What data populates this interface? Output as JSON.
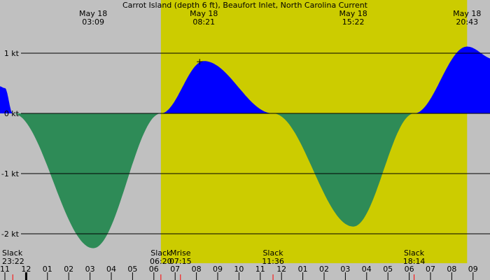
{
  "chart_data": {
    "type": "area",
    "title": "Carrot Island (depth 6 ft), Beaufort Inlet, North Carolina Current",
    "unit": "kt",
    "x_start_hour": 23.0,
    "x_end_hour": 33.3,
    "ylim": [
      -2.35,
      1.65
    ],
    "y_ticks": [
      {
        "value": 1,
        "label": "1 kt"
      },
      {
        "value": 0,
        "label": "0 kt"
      },
      {
        "value": -1,
        "label": "-1 kt"
      },
      {
        "value": -2,
        "label": "-2 kt"
      }
    ],
    "daylight": {
      "start_hour": 30.33,
      "end_hour": 44.72
    },
    "hour_ticks": [
      {
        "hour": 23,
        "label": "11"
      },
      {
        "hour": 24,
        "label": "12"
      },
      {
        "hour": 25,
        "label": "01"
      },
      {
        "hour": 26,
        "label": "02"
      },
      {
        "hour": 27,
        "label": "03"
      },
      {
        "hour": 28,
        "label": "04"
      },
      {
        "hour": 29,
        "label": "05"
      },
      {
        "hour": 30,
        "label": "06"
      },
      {
        "hour": 31,
        "label": "07"
      },
      {
        "hour": 32,
        "label": "08"
      },
      {
        "hour": 33,
        "label": "09"
      },
      {
        "hour": 34,
        "label": "10"
      },
      {
        "hour": 35,
        "label": "11"
      },
      {
        "hour": 36,
        "label": "12"
      },
      {
        "hour": 37,
        "label": "01"
      },
      {
        "hour": 38,
        "label": "02"
      },
      {
        "hour": 39,
        "label": "03"
      },
      {
        "hour": 40,
        "label": "04"
      },
      {
        "hour": 41,
        "label": "05"
      },
      {
        "hour": 42,
        "label": "06"
      },
      {
        "hour": 43,
        "label": "07"
      },
      {
        "hour": 44,
        "label": "08"
      },
      {
        "hour": 45,
        "label": "09"
      }
    ],
    "extremes": [
      {
        "date": "May 18",
        "time": "03:09",
        "hour": 27.15,
        "value": -2.24
      },
      {
        "date": "May 18",
        "time": "08:21",
        "hour": 32.35,
        "value": 0.87
      },
      {
        "date": "May 18",
        "time": "15:22",
        "hour": 39.37,
        "value": -1.88
      },
      {
        "date": "May 18",
        "time": "20:43",
        "hour": 44.72,
        "value": 1.11
      }
    ],
    "events": [
      {
        "label": "Slack",
        "time": "23:22",
        "hour": 23.37
      },
      {
        "label": "Slack",
        "time": "06:20",
        "hour": 30.33
      },
      {
        "label": "Mrise",
        "time": "07:15",
        "hour": 31.25
      },
      {
        "label": "Slack",
        "time": "11:36",
        "hour": 35.6
      },
      {
        "label": "Slack",
        "time": "18:14",
        "hour": 42.23
      }
    ],
    "curve": [
      {
        "hour": 22.75,
        "value": 0.45
      },
      {
        "hour": 23.0,
        "value": 0.42
      },
      {
        "hour": 23.37,
        "value": 0.0
      },
      {
        "hour": 27.15,
        "value": -2.24
      },
      {
        "hour": 30.33,
        "value": 0.0
      },
      {
        "hour": 32.35,
        "value": 0.87
      },
      {
        "hour": 35.6,
        "value": 0.0
      },
      {
        "hour": 39.37,
        "value": -1.88
      },
      {
        "hour": 42.23,
        "value": 0.0
      },
      {
        "hour": 44.72,
        "value": 1.11
      },
      {
        "hour": 46.0,
        "value": 0.9
      }
    ],
    "colors": {
      "flood": "#0000ff",
      "ebb": "#2e8b57",
      "daylight": "#cccc00",
      "night": "#c0c0c0",
      "slack_tick": "#ff0000",
      "now_tick": "#000000"
    },
    "now_hour": 24.0
  }
}
